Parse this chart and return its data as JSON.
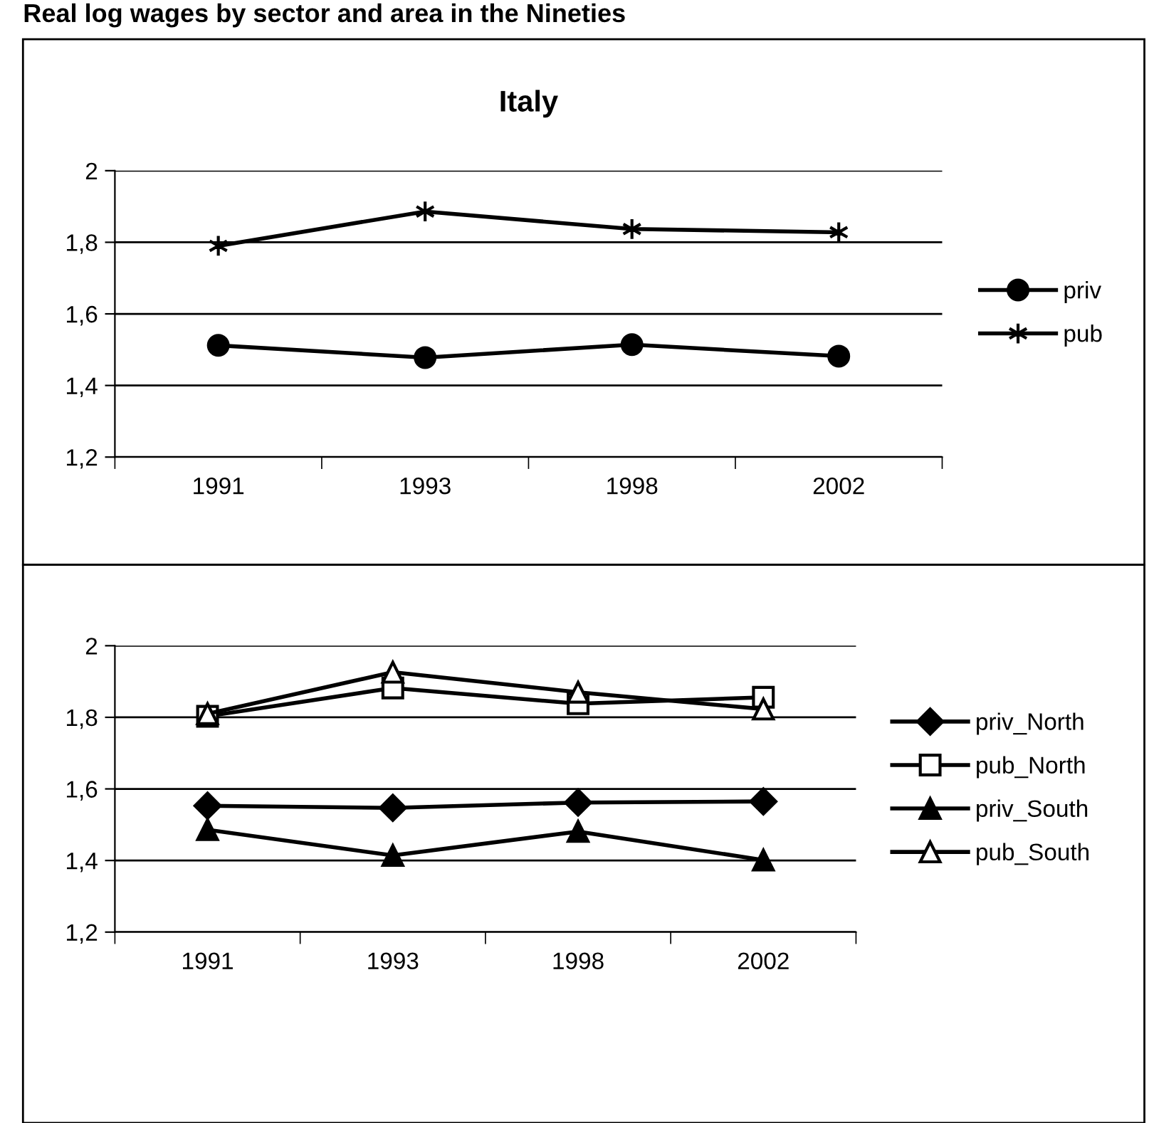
{
  "chart_data": [
    {
      "type": "line",
      "title": "Italy",
      "annotations": [
        "Real log wages by sector and area in the Nineties"
      ],
      "categories": [
        "1991",
        "1993",
        "1998",
        "2002"
      ],
      "ylim": [
        1.2,
        2
      ],
      "yticks": [
        {
          "value": 1.2,
          "label": "1,2"
        },
        {
          "value": 1.4,
          "label": "1,4"
        },
        {
          "value": 1.6,
          "label": "1,6"
        },
        {
          "value": 1.8,
          "label": "1,8"
        },
        {
          "value": 2,
          "label": "2"
        }
      ],
      "grid": "y",
      "legend": "right",
      "series": [
        {
          "name": "priv",
          "color": "#000000",
          "marker": "circle",
          "values": [
            1.512,
            1.478,
            1.514,
            1.482
          ]
        },
        {
          "name": "pub",
          "color": "#000000",
          "marker": "cross",
          "values": [
            1.79,
            1.886,
            1.837,
            1.828
          ]
        }
      ]
    },
    {
      "type": "line",
      "categories": [
        "1991",
        "1993",
        "1998",
        "2002"
      ],
      "ylim": [
        1.2,
        2
      ],
      "yticks": [
        {
          "value": 1.2,
          "label": "1,2"
        },
        {
          "value": 1.4,
          "label": "1,4"
        },
        {
          "value": 1.6,
          "label": "1,6"
        },
        {
          "value": 1.8,
          "label": "1,8"
        },
        {
          "value": 2,
          "label": "2"
        }
      ],
      "grid": "y",
      "legend": "right",
      "series": [
        {
          "name": "priv_North",
          "color": "#000000",
          "marker": "diamond",
          "values": [
            1.553,
            1.547,
            1.562,
            1.565
          ]
        },
        {
          "name": "pub_North",
          "color": "#000000",
          "marker": "square",
          "values": [
            1.803,
            1.882,
            1.838,
            1.856
          ]
        },
        {
          "name": "priv_South",
          "color": "#000000",
          "marker": "triangle",
          "values": [
            1.486,
            1.414,
            1.481,
            1.401
          ]
        },
        {
          "name": "pub_South",
          "color": "#000000",
          "marker": "triangle",
          "values": [
            1.81,
            1.926,
            1.87,
            1.823
          ]
        }
      ]
    }
  ]
}
